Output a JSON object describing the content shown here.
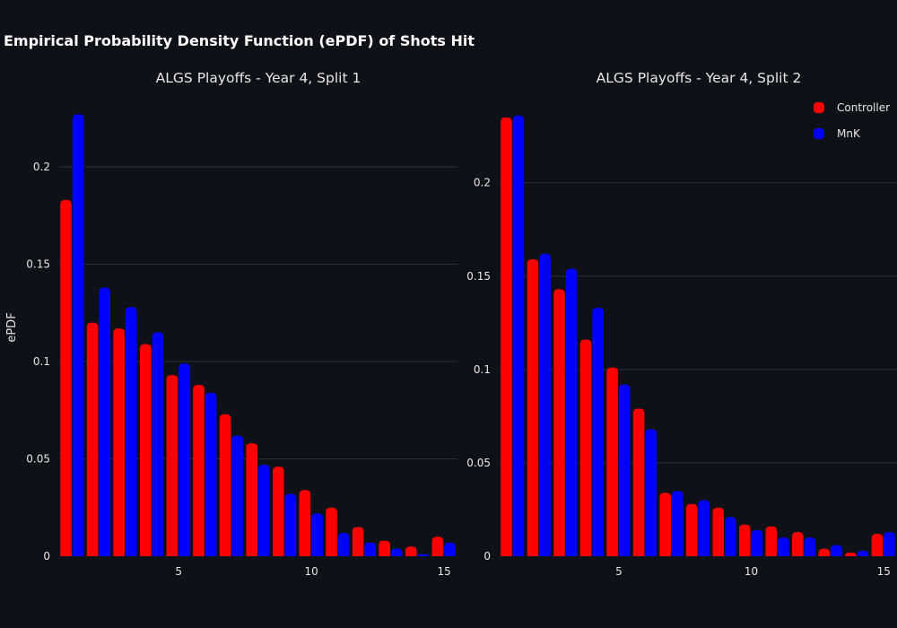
{
  "title": "Empirical Probability Density Function (ePDF) of Shots Hit",
  "colors": {
    "background": "#0e1117",
    "grid": "#2b2f38",
    "text": "#e6e6e6"
  },
  "legend": {
    "placement": "top-right",
    "items": [
      {
        "name": "Controller",
        "color": "#ff0000"
      },
      {
        "name": "MnK",
        "color": "#0000ff"
      }
    ]
  },
  "chart_data": [
    {
      "type": "bar",
      "subtitle": "ALGS Playoffs - Year 4, Split 1",
      "ylabel": "ePDF",
      "xlabel": "",
      "x": [
        1,
        2,
        3,
        4,
        5,
        6,
        7,
        8,
        9,
        10,
        11,
        12,
        13,
        14,
        15
      ],
      "xlim": [
        0.5,
        15.5
      ],
      "ylim": [
        0,
        0.235
      ],
      "xticks": [
        5,
        10,
        15
      ],
      "xtick_labels": [
        "5",
        "10",
        "15"
      ],
      "yticks": [
        0,
        0.05,
        0.1,
        0.15,
        0.2
      ],
      "ytick_labels": [
        "0",
        "0.05",
        "0.1",
        "0.15",
        "0.2"
      ],
      "grid": true,
      "series": [
        {
          "name": "Controller",
          "color": "#ff0000",
          "values": [
            0.183,
            0.12,
            0.117,
            0.109,
            0.093,
            0.088,
            0.073,
            0.058,
            0.046,
            0.034,
            0.025,
            0.015,
            0.008,
            0.005,
            0.01
          ]
        },
        {
          "name": "MnK",
          "color": "#0000ff",
          "values": [
            0.227,
            0.138,
            0.128,
            0.115,
            0.099,
            0.084,
            0.062,
            0.047,
            0.032,
            0.022,
            0.012,
            0.007,
            0.004,
            0.001,
            0.007
          ]
        }
      ]
    },
    {
      "type": "bar",
      "subtitle": "ALGS Playoffs - Year 4, Split 2",
      "ylabel": "",
      "xlabel": "",
      "x": [
        1,
        2,
        3,
        4,
        5,
        6,
        7,
        8,
        9,
        10,
        11,
        12,
        13,
        14,
        15
      ],
      "xlim": [
        0.5,
        15.5
      ],
      "ylim": [
        0,
        0.245
      ],
      "xticks": [
        5,
        10,
        15
      ],
      "xtick_labels": [
        "5",
        "10",
        "15"
      ],
      "yticks": [
        0,
        0.05,
        0.1,
        0.15,
        0.2
      ],
      "ytick_labels": [
        "0",
        "0.05",
        "0.1",
        "0.15",
        "0.2"
      ],
      "grid": true,
      "series": [
        {
          "name": "Controller",
          "color": "#ff0000",
          "values": [
            0.235,
            0.159,
            0.143,
            0.116,
            0.101,
            0.079,
            0.034,
            0.028,
            0.026,
            0.017,
            0.016,
            0.013,
            0.004,
            0.002,
            0.012
          ]
        },
        {
          "name": "MnK",
          "color": "#0000ff",
          "values": [
            0.236,
            0.162,
            0.154,
            0.133,
            0.092,
            0.068,
            0.035,
            0.03,
            0.021,
            0.014,
            0.01,
            0.01,
            0.006,
            0.003,
            0.013
          ]
        }
      ]
    }
  ]
}
